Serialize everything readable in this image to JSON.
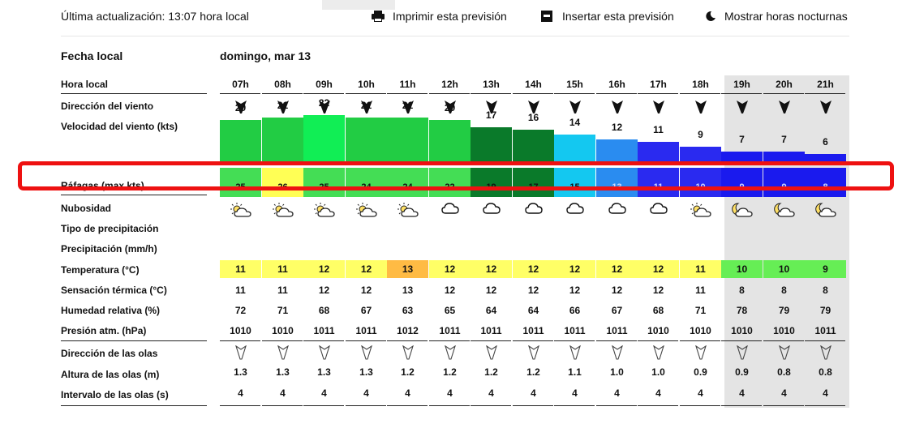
{
  "header": {
    "last_update": "Última actualización:  13:07 hora local",
    "print_label": "Imprimir esta previsión",
    "embed_label": "Insertar esta previsión",
    "night_label": "Mostrar horas nocturnas"
  },
  "date": {
    "label": "Fecha local",
    "value": "domingo, mar 13"
  },
  "labels": {
    "hour": "Hora local",
    "wind_dir": "Dirección del viento",
    "wind_speed": "Velocidad del viento  (kts)",
    "gusts": "Ráfagas  (max kts)",
    "clouds": "Nubosidad",
    "precip_type": "Tipo de precipitación",
    "precip": "Precipitación  (mm/h)",
    "temp": "Temperatura  (°C)",
    "feels": "Sensación térmica  (°C)",
    "humidity": "Humedad relativa  (%)",
    "pressure": "Presión atm.  (hPa)",
    "wave_dir": "Dirección de las olas",
    "wave_height": "Altura de las olas  (m)",
    "wave_period": "Intervalo de las olas  (s)"
  },
  "hours": [
    "07h",
    "08h",
    "09h",
    "10h",
    "11h",
    "12h",
    "13h",
    "14h",
    "15h",
    "16h",
    "17h",
    "18h",
    "19h",
    "20h",
    "21h"
  ],
  "wind_speed": [
    "20",
    "21",
    "22",
    "21",
    "21",
    "20",
    "17",
    "16",
    "14",
    "12",
    "11",
    "9",
    "7",
    "7",
    "6"
  ],
  "gusts": [
    "25",
    "26",
    "25",
    "24",
    "24",
    "22",
    "19",
    "17",
    "15",
    "13",
    "11",
    "10",
    "9",
    "9",
    "8"
  ],
  "clouds": [
    "partly-cloudy-icon",
    "partly-cloudy-icon",
    "partly-cloudy-icon",
    "partly-cloudy-icon",
    "partly-cloudy-icon",
    "cloud-icon",
    "cloud-icon",
    "cloud-icon",
    "cloud-icon",
    "cloud-icon",
    "cloud-icon",
    "partly-cloudy-icon",
    "night-partly-cloudy-icon",
    "night-partly-cloudy-icon",
    "night-partly-cloudy-icon"
  ],
  "temperature": [
    "11",
    "11",
    "12",
    "12",
    "13",
    "12",
    "12",
    "12",
    "12",
    "12",
    "12",
    "11",
    "10",
    "10",
    "9"
  ],
  "feels_like": [
    "11",
    "11",
    "12",
    "12",
    "13",
    "12",
    "12",
    "12",
    "12",
    "12",
    "12",
    "11",
    "8",
    "8",
    "8"
  ],
  "humidity": [
    "72",
    "71",
    "68",
    "67",
    "63",
    "65",
    "64",
    "64",
    "66",
    "67",
    "68",
    "71",
    "78",
    "79",
    "79"
  ],
  "pressure": [
    "1010",
    "1010",
    "1011",
    "1011",
    "1012",
    "1011",
    "1011",
    "1011",
    "1011",
    "1011",
    "1010",
    "1010",
    "1010",
    "1010",
    "1011"
  ],
  "wave_height": [
    "1.3",
    "1.3",
    "1.3",
    "1.3",
    "1.2",
    "1.2",
    "1.2",
    "1.2",
    "1.1",
    "1.0",
    "1.0",
    "0.9",
    "0.9",
    "0.8",
    "0.8"
  ],
  "wave_period": [
    "4",
    "4",
    "4",
    "4",
    "4",
    "4",
    "4",
    "4",
    "4",
    "4",
    "4",
    "4",
    "4",
    "4",
    "4"
  ],
  "colors": {
    "wind_bars": [
      "#22cc44",
      "#22cc44",
      "#11ee55",
      "#22cc44",
      "#22cc44",
      "#22cc44",
      "#0a7a2a",
      "#0a7a2a",
      "#14c8f0",
      "#2a8cf0",
      "#2a2af0",
      "#2a2af0",
      "#1a1aee",
      "#1a1aee",
      "#1a1aee"
    ],
    "gust_cells": [
      "#44dd55",
      "#ffff55",
      "#44dd55",
      "#44dd55",
      "#44dd55",
      "#44dd55",
      "#0a7a2a",
      "#0a7a2a",
      "#14c8f0",
      "#2a8cf0",
      "#2a2af0",
      "#2a2af0",
      "#1a1aee",
      "#1a1aee",
      "#1a1aee"
    ],
    "temp_cells": [
      "#ffff66",
      "#ffff66",
      "#ffff66",
      "#ffff66",
      "#ffbb44",
      "#ffff66",
      "#ffff66",
      "#ffff66",
      "#ffff66",
      "#ffff66",
      "#ffff66",
      "#ffff66",
      "#66ee55",
      "#66ee55",
      "#66ee55"
    ],
    "highlight": "#ee1111"
  }
}
